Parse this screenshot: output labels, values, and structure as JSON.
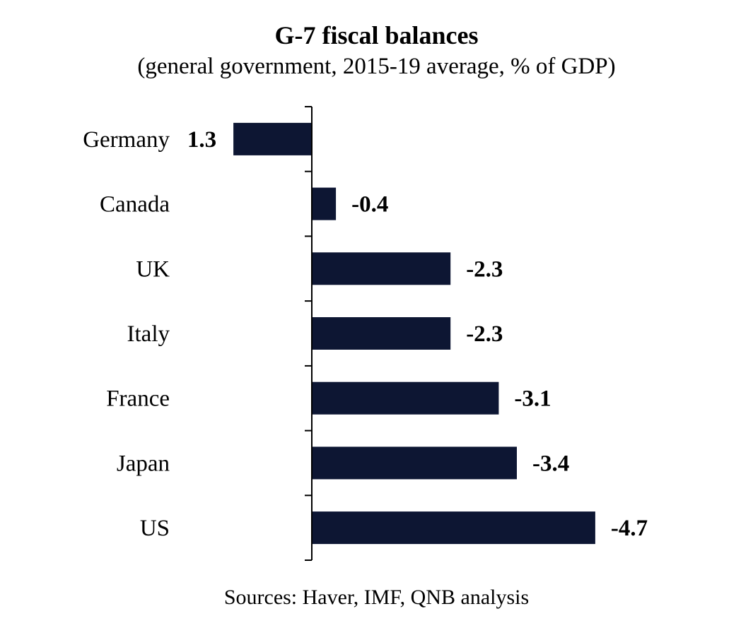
{
  "chart_data": {
    "type": "bar",
    "orientation": "horizontal",
    "title": "G-7 fiscal balances",
    "subtitle": "(general government, 2015-19 average, % of GDP)",
    "source": "Sources: Haver, IMF, QNB analysis",
    "categories": [
      "Germany",
      "Canada",
      "UK",
      "Italy",
      "France",
      "Japan",
      "US"
    ],
    "values": [
      1.3,
      -0.4,
      -2.3,
      -2.3,
      -3.1,
      -3.4,
      -4.7
    ],
    "value_labels": [
      "1.3",
      "-0.4",
      "-2.3",
      "-2.3",
      "-3.1",
      "-3.4",
      "-4.7"
    ],
    "xlabel": "",
    "ylabel": "",
    "grid": false,
    "legend": "none",
    "bar_color": "#0d1633",
    "axis_color": "#000000"
  }
}
